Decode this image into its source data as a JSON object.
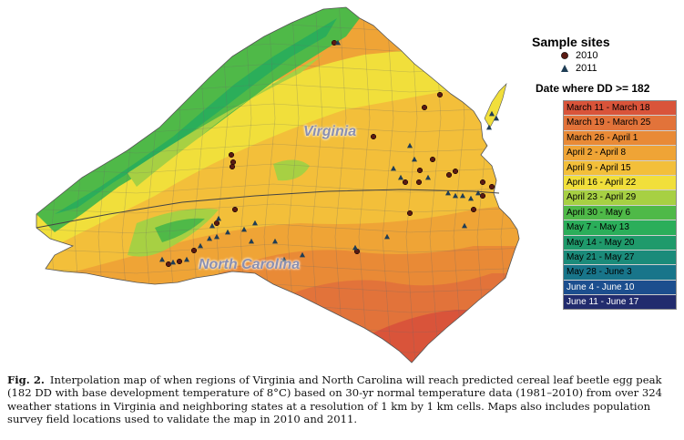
{
  "map": {
    "state_labels": {
      "virginia": "Virginia",
      "north_carolina": "North Carolina"
    },
    "colors": {
      "c1": "#d9543a",
      "c2": "#e2733a",
      "c3": "#e98a36",
      "c4": "#efa436",
      "c5": "#f3bf3a",
      "c6": "#f1df3b",
      "c7": "#a7d043",
      "c8": "#4fb948",
      "c9": "#2bae5a",
      "c10": "#1f9a6b",
      "c11": "#1b8b7a",
      "c12": "#18758a",
      "c13": "#1c4e8e",
      "c14": "#222c6e"
    },
    "marker_colors": {
      "site_2010": "#5a1a12",
      "site_2011": "#1f3d55"
    }
  },
  "legend": {
    "sample_sites_title": "Sample sites",
    "sites": [
      {
        "label": "2010",
        "icon": "circle-icon",
        "color": "#5a1a12"
      },
      {
        "label": "2011",
        "icon": "triangle-icon",
        "color": "#1f3d55"
      }
    ],
    "dd_title": "Date where DD >= 182",
    "ranges": [
      {
        "label": "March 11 - March 18",
        "color": "#d9543a"
      },
      {
        "label": "March 19 - March 25",
        "color": "#e2733a"
      },
      {
        "label": "March 26 - April 1",
        "color": "#e98a36"
      },
      {
        "label": "April 2 - April 8",
        "color": "#efa436"
      },
      {
        "label": "April 9 - April 15",
        "color": "#f3bf3a"
      },
      {
        "label": "April 16 - April 22",
        "color": "#f1df3b"
      },
      {
        "label": "April 23  - April 29",
        "color": "#a7d043"
      },
      {
        "label": "April 30 - May 6",
        "color": "#4fb948"
      },
      {
        "label": "May 7 - May 13",
        "color": "#2bae5a"
      },
      {
        "label": "May 14 - May 20",
        "color": "#1f9a6b"
      },
      {
        "label": "May 21 - May 27",
        "color": "#1b8b7a"
      },
      {
        "label": "May 28 - June 3",
        "color": "#18758a"
      },
      {
        "label": "June 4 - June 10",
        "color": "#1c4e8e"
      },
      {
        "label": "June 11 - June 17",
        "color": "#222c6e"
      }
    ]
  },
  "caption": {
    "fig": "Fig. 2.",
    "text": "Interpolation map of when regions of Virginia and North Carolina will reach predicted cereal leaf beetle egg peak (182 DD with base development temperature of 8°C) based on 30-yr normal temperature data (1981–2010) from over 324 weather stations in Virginia and neighboring states at a resolution of 1 km by 1 km cells. Maps also includes population survey field locations used to validate the map in 2010 and 2011."
  }
}
